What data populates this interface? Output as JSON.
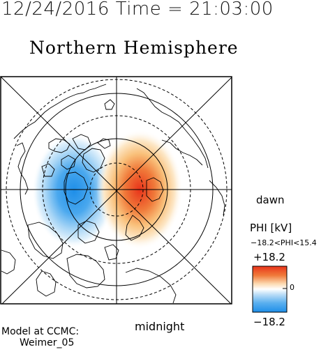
{
  "header": {
    "timestamp": "12/24/2016 Time = 21:03:00",
    "hemisphere": "Northern Hemisphere"
  },
  "map": {
    "orientation_label_right": "dawn",
    "orientation_label_bottom": "midnight",
    "field_title": "PHI [kV]",
    "field_range": "−18.2<PHI<15.4",
    "colorbar_max_label": "+18.2",
    "colorbar_min_label": "−18.2",
    "colorbar_mid_label": "0",
    "colors": {
      "positive": "#e8331a",
      "negative": "#1e8ee8",
      "zero": "#ffffff"
    }
  },
  "credit": {
    "line1": "Model at CCMC:",
    "line2": "Weimer_05"
  }
}
